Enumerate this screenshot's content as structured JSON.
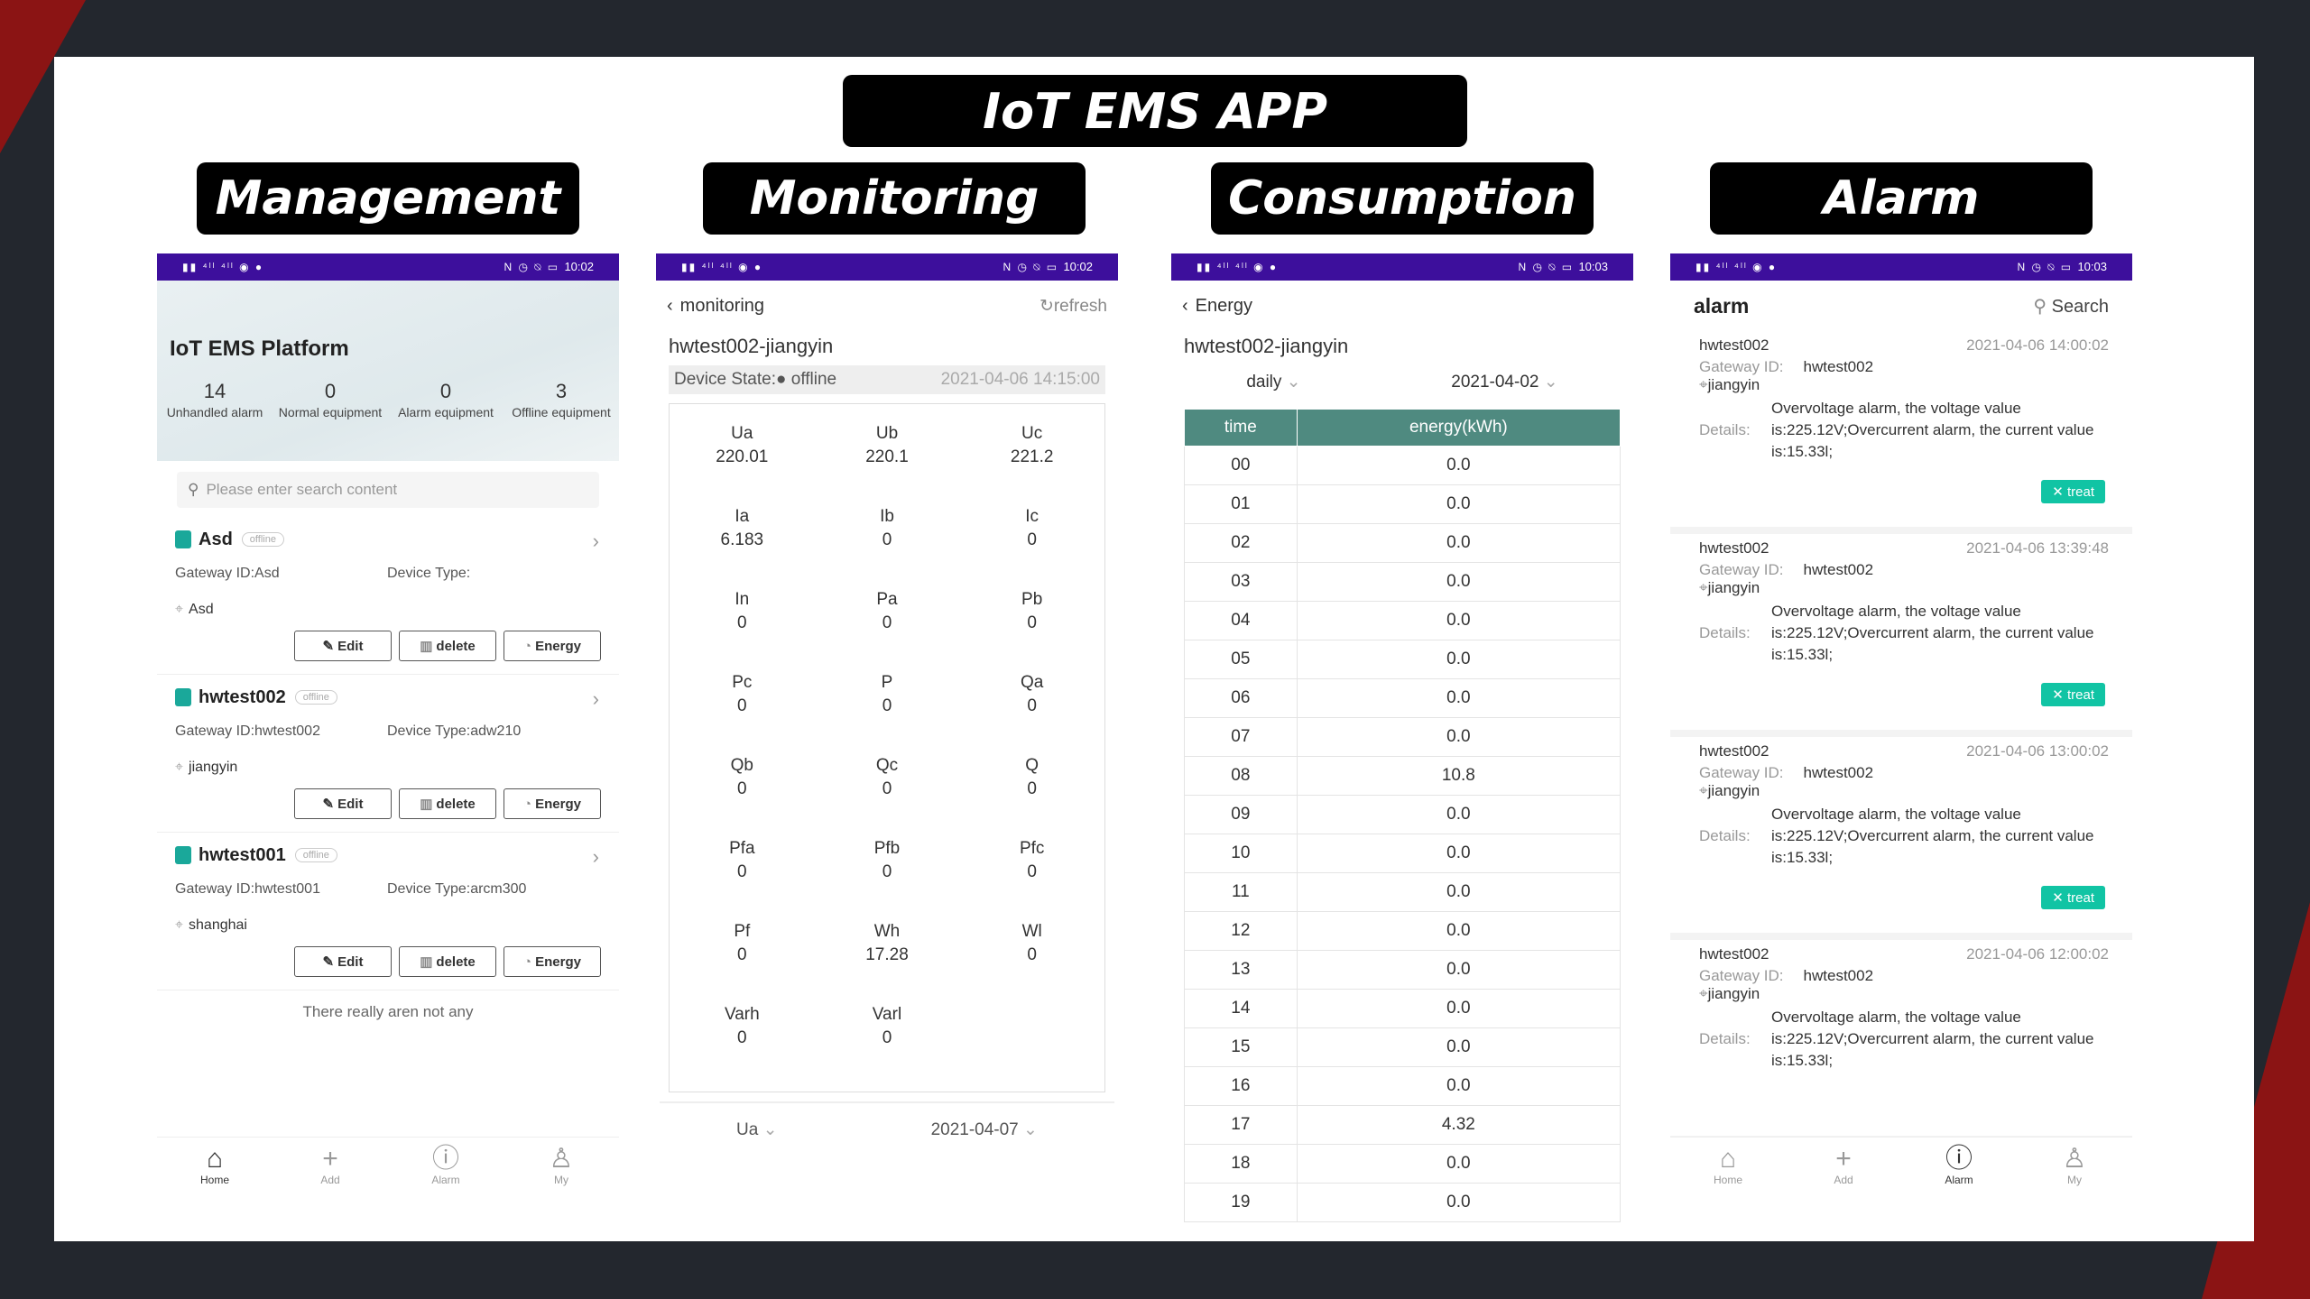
{
  "slide_title": "IoT EMS APP",
  "section_labels": {
    "management": "Management",
    "monitoring": "Monitoring",
    "consumption": "Consumption",
    "alarm": "Alarm"
  },
  "colors": {
    "status_bar": "#3d0f9c",
    "table_header": "#4f8a80",
    "treat_button": "#11c4a4",
    "accent_red": "#c62828"
  },
  "management": {
    "status_time": "10:02",
    "title": "IoT EMS Platform",
    "stats": [
      {
        "num": "14",
        "label": "Unhandled alarm"
      },
      {
        "num": "0",
        "label": "Normal equipment"
      },
      {
        "num": "0",
        "label": "Alarm equipment"
      },
      {
        "num": "3",
        "label": "Offline equipment"
      }
    ],
    "search_placeholder": "Please enter search content",
    "devices": [
      {
        "name": "Asd",
        "badge": "offline",
        "gateway": "Gateway ID:Asd",
        "type": "Device Type:",
        "location": "Asd"
      },
      {
        "name": "hwtest002",
        "badge": "offline",
        "gateway": "Gateway ID:hwtest002",
        "type": "Device Type:adw210",
        "location": "jiangyin"
      },
      {
        "name": "hwtest001",
        "badge": "offline",
        "gateway": "Gateway ID:hwtest001",
        "type": "Device Type:arcm300",
        "location": "shanghai"
      }
    ],
    "buttons": {
      "edit": "Edit",
      "delete": "delete",
      "energy": "Energy"
    },
    "none_text": "There really aren not any",
    "tabs": {
      "home": "Home",
      "add": "Add",
      "alarm": "Alarm",
      "my": "My"
    }
  },
  "monitoring": {
    "status_time": "10:02",
    "nav_title": "monitoring",
    "refresh": "refresh",
    "device": "hwtest002-jiangyin",
    "state_label": "Device State:",
    "state_value": "offline",
    "state_time": "2021-04-06 14:15:00",
    "params": [
      {
        "k": "Ua",
        "v": "220.01"
      },
      {
        "k": "Ub",
        "v": "220.1"
      },
      {
        "k": "Uc",
        "v": "221.2"
      },
      {
        "k": "Ia",
        "v": "6.183"
      },
      {
        "k": "Ib",
        "v": "0"
      },
      {
        "k": "Ic",
        "v": "0"
      },
      {
        "k": "In",
        "v": "0"
      },
      {
        "k": "Pa",
        "v": "0"
      },
      {
        "k": "Pb",
        "v": "0"
      },
      {
        "k": "Pc",
        "v": "0"
      },
      {
        "k": "P",
        "v": "0"
      },
      {
        "k": "Qa",
        "v": "0"
      },
      {
        "k": "Qb",
        "v": "0"
      },
      {
        "k": "Qc",
        "v": "0"
      },
      {
        "k": "Q",
        "v": "0"
      },
      {
        "k": "Pfa",
        "v": "0"
      },
      {
        "k": "Pfb",
        "v": "0"
      },
      {
        "k": "Pfc",
        "v": "0"
      },
      {
        "k": "Pf",
        "v": "0"
      },
      {
        "k": "Wh",
        "v": "17.28"
      },
      {
        "k": "Wl",
        "v": "0"
      },
      {
        "k": "Varh",
        "v": "0"
      },
      {
        "k": "Varl",
        "v": "0"
      }
    ],
    "footer_param": "Ua",
    "footer_date": "2021-04-07"
  },
  "consumption": {
    "status_time": "10:03",
    "nav_title": "Energy",
    "device": "hwtest002-jiangyin",
    "period": "daily",
    "date": "2021-04-02",
    "headers": [
      "time",
      "energy(kWh)"
    ],
    "rows": [
      [
        "00",
        "0.0"
      ],
      [
        "01",
        "0.0"
      ],
      [
        "02",
        "0.0"
      ],
      [
        "03",
        "0.0"
      ],
      [
        "04",
        "0.0"
      ],
      [
        "05",
        "0.0"
      ],
      [
        "06",
        "0.0"
      ],
      [
        "07",
        "0.0"
      ],
      [
        "08",
        "10.8"
      ],
      [
        "09",
        "0.0"
      ],
      [
        "10",
        "0.0"
      ],
      [
        "11",
        "0.0"
      ],
      [
        "12",
        "0.0"
      ],
      [
        "13",
        "0.0"
      ],
      [
        "14",
        "0.0"
      ],
      [
        "15",
        "0.0"
      ],
      [
        "16",
        "0.0"
      ],
      [
        "17",
        "4.32"
      ],
      [
        "18",
        "0.0"
      ],
      [
        "19",
        "0.0"
      ]
    ]
  },
  "alarm": {
    "status_time": "10:03",
    "title": "alarm",
    "search": "Search",
    "gateway_label": "Gateway ID:",
    "details_label": "Details:",
    "treat": "treat",
    "items": [
      {
        "device": "hwtest002",
        "time": "2021-04-06 14:00:02",
        "gateway": "hwtest002",
        "location": "jiangyin",
        "details": "Overvoltage alarm, the voltage value is:225.12V;Overcurrent alarm, the current value is:15.33l;"
      },
      {
        "device": "hwtest002",
        "time": "2021-04-06 13:39:48",
        "gateway": "hwtest002",
        "location": "jiangyin",
        "details": "Overvoltage alarm, the voltage value is:225.12V;Overcurrent alarm, the current value is:15.33l;"
      },
      {
        "device": "hwtest002",
        "time": "2021-04-06 13:00:02",
        "gateway": "hwtest002",
        "location": "jiangyin",
        "details": "Overvoltage alarm, the voltage value is:225.12V;Overcurrent alarm, the current value is:15.33l;"
      },
      {
        "device": "hwtest002",
        "time": "2021-04-06 12:00:02",
        "gateway": "hwtest002",
        "location": "jiangyin",
        "details": "Overvoltage alarm, the voltage value is:225.12V;Overcurrent alarm, the current value is:15.33l;"
      }
    ]
  }
}
